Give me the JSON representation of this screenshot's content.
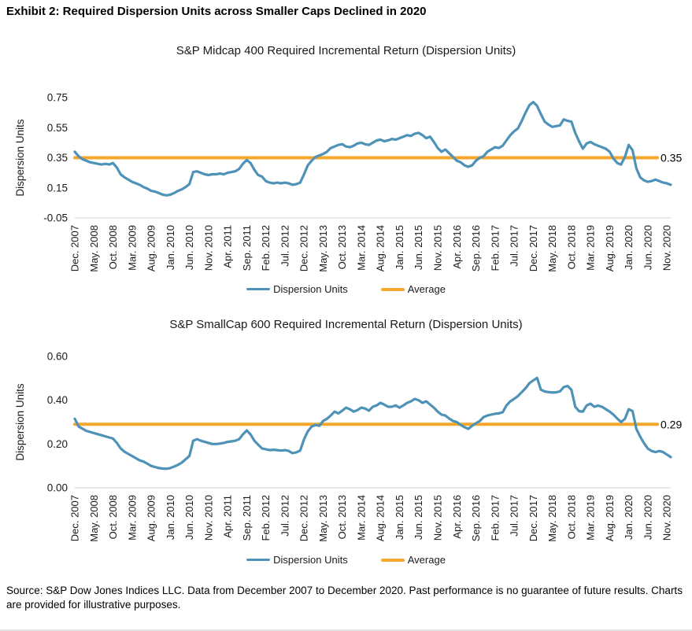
{
  "page": {
    "exhibit_title": "Exhibit 2: Required Dispersion Units across Smaller Caps Declined in 2020",
    "source_text": "Source: S&P Dow Jones Indices LLC. Data from December 2007 to December 2020. Past performance is no guarantee of future results. Charts are provided for illustrative purposes."
  },
  "legend": {
    "dispersion_label": "Dispersion Units",
    "average_label": "Average"
  },
  "colors": {
    "dispersion_line": "#4E92B8",
    "average_line": "#F5A62B",
    "axis_line": "#D9D9D9",
    "text": "#1A1A1A"
  },
  "chart_data": [
    {
      "type": "line",
      "title": "S&P Midcap 400 Required Incremental Return (Dispersion Units)",
      "ylabel": "Dispersion Units",
      "ylim": [
        -0.05,
        0.75
      ],
      "ytick_values": [
        0.75,
        0.55,
        0.35,
        0.15,
        -0.05
      ],
      "ytick_labels": [
        "0.75",
        "0.55",
        "0.35",
        "0.15",
        "-0.05"
      ],
      "x_start": "Dec. 2007",
      "x_end": "Dec. 2020",
      "x_frequency": "monthly",
      "x_tick_every": 5,
      "x_tick_labels": [
        "Dec. 2007",
        "May. 2008",
        "Oct. 2008",
        "Mar. 2009",
        "Aug. 2009",
        "Jan. 2010",
        "Jun. 2010",
        "Nov. 2010",
        "Apr. 2011",
        "Sep. 2011",
        "Feb. 2012",
        "Jul. 2012",
        "Dec. 2012",
        "May. 2013",
        "Oct. 2013",
        "Mar. 2014",
        "Aug. 2014",
        "Jan. 2015",
        "Jun. 2015",
        "Nov. 2015",
        "Apr. 2016",
        "Sep. 2016",
        "Feb. 2017",
        "Jul. 2017",
        "Dec. 2017",
        "May. 2018",
        "Oct. 2018",
        "Mar. 2019",
        "Aug. 2019",
        "Jan. 2020",
        "Jun. 2020",
        "Nov. 2020"
      ],
      "legend_position": "bottom",
      "grid": false,
      "average": 0.35,
      "average_label": "0.35",
      "series": [
        {
          "name": "Dispersion Units",
          "values": [
            0.39,
            0.36,
            0.34,
            0.33,
            0.32,
            0.315,
            0.31,
            0.305,
            0.31,
            0.305,
            0.315,
            0.285,
            0.24,
            0.22,
            0.205,
            0.19,
            0.18,
            0.17,
            0.155,
            0.145,
            0.13,
            0.125,
            0.115,
            0.105,
            0.1,
            0.105,
            0.115,
            0.13,
            0.14,
            0.155,
            0.175,
            0.255,
            0.26,
            0.25,
            0.24,
            0.235,
            0.24,
            0.24,
            0.245,
            0.24,
            0.25,
            0.255,
            0.26,
            0.275,
            0.31,
            0.335,
            0.315,
            0.27,
            0.235,
            0.225,
            0.195,
            0.185,
            0.18,
            0.185,
            0.18,
            0.185,
            0.18,
            0.17,
            0.175,
            0.185,
            0.24,
            0.3,
            0.33,
            0.355,
            0.365,
            0.375,
            0.39,
            0.415,
            0.425,
            0.435,
            0.44,
            0.425,
            0.42,
            0.43,
            0.445,
            0.45,
            0.44,
            0.435,
            0.45,
            0.465,
            0.47,
            0.46,
            0.465,
            0.475,
            0.47,
            0.48,
            0.49,
            0.5,
            0.495,
            0.51,
            0.515,
            0.5,
            0.48,
            0.49,
            0.455,
            0.415,
            0.39,
            0.405,
            0.38,
            0.355,
            0.33,
            0.32,
            0.3,
            0.29,
            0.3,
            0.33,
            0.35,
            0.36,
            0.39,
            0.405,
            0.42,
            0.415,
            0.43,
            0.465,
            0.5,
            0.525,
            0.545,
            0.595,
            0.65,
            0.7,
            0.72,
            0.695,
            0.64,
            0.59,
            0.57,
            0.555,
            0.56,
            0.565,
            0.605,
            0.595,
            0.59,
            0.515,
            0.46,
            0.41,
            0.445,
            0.455,
            0.44,
            0.43,
            0.42,
            0.41,
            0.39,
            0.345,
            0.315,
            0.305,
            0.355,
            0.435,
            0.4,
            0.28,
            0.22,
            0.2,
            0.19,
            0.195,
            0.205,
            0.195,
            0.185,
            0.18,
            0.17
          ]
        }
      ]
    },
    {
      "type": "line",
      "title": "S&P SmallCap 600 Required Incremental Return (Dispersion Units)",
      "ylabel": "Dispersion Units",
      "ylim": [
        0.0,
        0.6
      ],
      "ytick_values": [
        0.6,
        0.4,
        0.2,
        0.0
      ],
      "ytick_labels": [
        "0.60",
        "0.40",
        "0.20",
        "0.00"
      ],
      "x_start": "Dec. 2007",
      "x_end": "Dec. 2020",
      "x_frequency": "monthly",
      "x_tick_every": 5,
      "x_tick_labels": [
        "Dec. 2007",
        "May. 2008",
        "Oct. 2008",
        "Mar. 2009",
        "Aug. 2009",
        "Jan. 2010",
        "Jun. 2010",
        "Nov. 2010",
        "Apr. 2011",
        "Sep. 2011",
        "Feb. 2012",
        "Jul. 2012",
        "Dec. 2012",
        "May. 2013",
        "Oct. 2013",
        "Mar. 2014",
        "Aug. 2014",
        "Jan. 2015",
        "Jun. 2015",
        "Nov. 2015",
        "Apr. 2016",
        "Sep. 2016",
        "Feb. 2017",
        "Jul. 2017",
        "Dec. 2017",
        "May. 2018",
        "Oct. 2018",
        "Mar. 2019",
        "Aug. 2019",
        "Jan. 2020",
        "Jun. 2020",
        "Nov. 2020"
      ],
      "legend_position": "bottom",
      "grid": false,
      "average": 0.29,
      "average_label": "0.29",
      "series": [
        {
          "name": "Dispersion Units",
          "values": [
            0.315,
            0.28,
            0.27,
            0.26,
            0.255,
            0.25,
            0.245,
            0.24,
            0.235,
            0.23,
            0.225,
            0.205,
            0.18,
            0.165,
            0.155,
            0.145,
            0.135,
            0.125,
            0.12,
            0.11,
            0.1,
            0.095,
            0.09,
            0.088,
            0.087,
            0.09,
            0.097,
            0.105,
            0.115,
            0.13,
            0.145,
            0.215,
            0.222,
            0.215,
            0.21,
            0.205,
            0.2,
            0.2,
            0.202,
            0.205,
            0.21,
            0.212,
            0.215,
            0.222,
            0.244,
            0.262,
            0.244,
            0.215,
            0.197,
            0.18,
            0.176,
            0.172,
            0.174,
            0.172,
            0.17,
            0.172,
            0.168,
            0.158,
            0.162,
            0.17,
            0.222,
            0.258,
            0.28,
            0.287,
            0.283,
            0.305,
            0.315,
            0.33,
            0.348,
            0.34,
            0.352,
            0.366,
            0.359,
            0.348,
            0.355,
            0.366,
            0.362,
            0.352,
            0.37,
            0.376,
            0.388,
            0.38,
            0.37,
            0.37,
            0.376,
            0.366,
            0.376,
            0.388,
            0.395,
            0.406,
            0.4,
            0.388,
            0.395,
            0.38,
            0.366,
            0.348,
            0.334,
            0.33,
            0.316,
            0.305,
            0.3,
            0.287,
            0.277,
            0.269,
            0.283,
            0.295,
            0.305,
            0.323,
            0.33,
            0.334,
            0.338,
            0.34,
            0.345,
            0.376,
            0.395,
            0.406,
            0.419,
            0.437,
            0.455,
            0.478,
            0.49,
            0.502,
            0.448,
            0.44,
            0.437,
            0.435,
            0.436,
            0.44,
            0.46,
            0.465,
            0.448,
            0.37,
            0.35,
            0.348,
            0.376,
            0.384,
            0.37,
            0.375,
            0.37,
            0.359,
            0.348,
            0.334,
            0.316,
            0.3,
            0.315,
            0.359,
            0.35,
            0.269,
            0.233,
            0.204,
            0.179,
            0.168,
            0.163,
            0.168,
            0.163,
            0.152,
            0.14
          ]
        }
      ]
    }
  ]
}
